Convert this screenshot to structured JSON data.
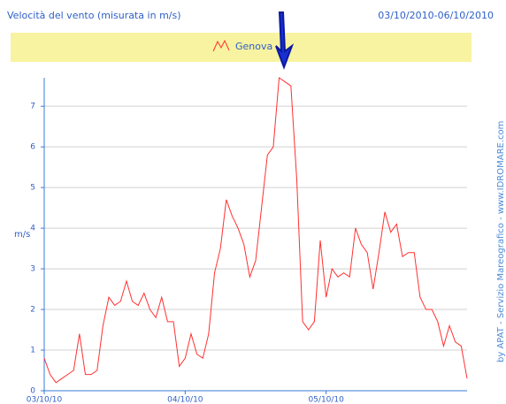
{
  "chart_data": {
    "type": "line",
    "title": "Velocità del vento (misurata in m/s)",
    "subtitle": "03/10/2010-06/10/2010",
    "y_label": "m/s",
    "credit": "by APAT - Servizio Mareografico - www.IDROMARE.com",
    "x": [
      0,
      1,
      2,
      3,
      4,
      5,
      6,
      7,
      8,
      9,
      10,
      11,
      12,
      13,
      14,
      15,
      16,
      17,
      18,
      19,
      20,
      21,
      22,
      23,
      24,
      25,
      26,
      27,
      28,
      29,
      30,
      31,
      32,
      33,
      34,
      35,
      36,
      37,
      38,
      39,
      40,
      41,
      42,
      43,
      44,
      45,
      46,
      47,
      48,
      49,
      50,
      51,
      52,
      53,
      54,
      55,
      56,
      57,
      58,
      59,
      60,
      61,
      62,
      63,
      64,
      65,
      66,
      67,
      68,
      69,
      70,
      71,
      72
    ],
    "series": [
      {
        "name": "Genova",
        "color": "#ff3030",
        "values": [
          0.8,
          0.4,
          0.2,
          0.3,
          0.4,
          0.5,
          1.4,
          0.4,
          0.4,
          0.5,
          1.6,
          2.3,
          2.1,
          2.2,
          2.7,
          2.2,
          2.1,
          2.4,
          2.0,
          1.8,
          2.3,
          1.7,
          1.7,
          0.6,
          0.8,
          1.4,
          0.9,
          0.8,
          1.4,
          2.9,
          3.5,
          4.7,
          4.3,
          4.0,
          3.6,
          2.8,
          3.2,
          4.5,
          5.8,
          6.0,
          7.7,
          7.6,
          7.5,
          5.2,
          1.7,
          1.5,
          1.7,
          3.7,
          2.3,
          3.0,
          2.8,
          2.9,
          2.8,
          4.0,
          3.6,
          3.4,
          2.5,
          3.4,
          4.4,
          3.9,
          4.1,
          3.3,
          3.4,
          3.4,
          2.3,
          2.0,
          2.0,
          1.7,
          1.1,
          1.6,
          1.2,
          1.1,
          0.3
        ]
      }
    ],
    "xlim": [
      0,
      72
    ],
    "xticks": [
      {
        "value": 0,
        "label": "03/10/10"
      },
      {
        "value": 24,
        "label": "04/10/10"
      },
      {
        "value": 48,
        "label": "05/10/10"
      }
    ],
    "ylim": [
      0,
      7.7
    ],
    "yticks": [
      0,
      1,
      2,
      3,
      4,
      5,
      6,
      7
    ],
    "grid": true
  }
}
